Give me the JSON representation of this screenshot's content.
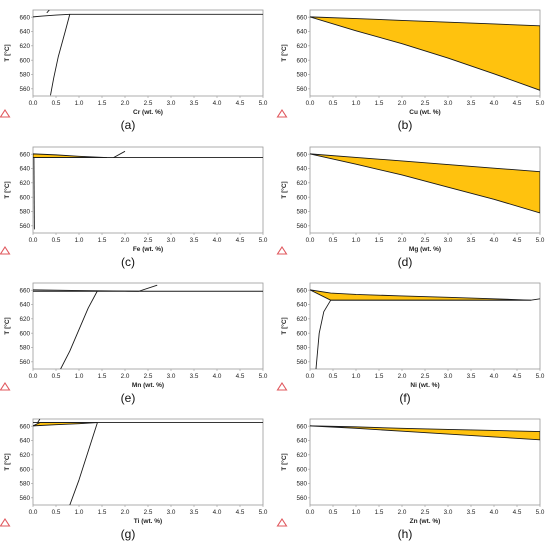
{
  "figure": {
    "panel_labels": [
      "(a)",
      "(b)",
      "(c)",
      "(d)",
      "(e)",
      "(f)",
      "(g)",
      "(h)"
    ],
    "ylabel": "T [°C]",
    "x_ticks": [
      "0.0",
      "0.5",
      "1.0",
      "1.5",
      "2.0",
      "2.5",
      "3.0",
      "3.5",
      "4.0",
      "4.5",
      "5.0"
    ],
    "y_ticks": [
      "560",
      "580",
      "600",
      "620",
      "640",
      "660"
    ],
    "colors": {
      "two_phase_fill": "#FFC20E",
      "line": "#1a1a1a",
      "axis": "#999999",
      "logo": "#e0585e"
    },
    "logo_icon": "software-logo-icon"
  },
  "chart_data": [
    {
      "type": "line",
      "panel": "(a)",
      "xlabel": "Cr (wt. %)",
      "ylabel": "T [°C]",
      "xlim": [
        0,
        5
      ],
      "ylim": [
        550,
        670
      ],
      "grid": false,
      "filled_region": null,
      "series": [
        {
          "x": [
            0,
            0.2,
            0.5,
            0.8,
            1.0,
            2.0,
            3.0,
            4.0,
            5.0
          ],
          "y": [
            660.4,
            661.5,
            663.0,
            664.0,
            664.0,
            664.0,
            664.0,
            664.0,
            664.0
          ]
        },
        {
          "x": [
            0.3,
            0.38
          ],
          "y": [
            666.0,
            672.0
          ]
        },
        {
          "x": [
            0.38,
            0.45,
            0.55,
            0.7,
            0.8
          ],
          "y": [
            551,
            575,
            605,
            640,
            664
          ]
        }
      ]
    },
    {
      "type": "area",
      "panel": "(b)",
      "xlabel": "Cu (wt. %)",
      "ylabel": "T [°C]",
      "xlim": [
        0,
        5
      ],
      "ylim": [
        550,
        670
      ],
      "grid": false,
      "filled_region": {
        "upper": {
          "x": [
            0,
            1,
            2,
            3,
            4,
            5
          ],
          "y": [
            660.4,
            658,
            655.5,
            653,
            650.5,
            648
          ]
        },
        "lower": {
          "x": [
            0,
            1,
            2,
            3,
            4,
            5
          ],
          "y": [
            660.4,
            641,
            623,
            603,
            581,
            558
          ]
        }
      },
      "series": []
    },
    {
      "type": "line",
      "panel": "(c)",
      "xlabel": "Fe (wt. %)",
      "ylabel": "T [°C]",
      "xlim": [
        0,
        5
      ],
      "ylim": [
        550,
        670
      ],
      "grid": false,
      "filled_region": {
        "upper": {
          "x": [
            0,
            0.5,
            1.0,
            1.6
          ],
          "y": [
            660.4,
            659,
            657,
            655.2
          ]
        },
        "lower": {
          "x": [
            0,
            0.5,
            1.0,
            1.6
          ],
          "y": [
            655.2,
            655.2,
            655.2,
            655.2
          ]
        }
      },
      "series": [
        {
          "x": [
            0,
            1,
            2,
            3,
            4,
            5
          ],
          "y": [
            655.2,
            655.2,
            655.2,
            655.2,
            655.2,
            655.2
          ]
        },
        {
          "x": [
            1.75,
            2.0
          ],
          "y": [
            655.2,
            664
          ]
        },
        {
          "x": [
            0.02,
            0.03
          ],
          "y": [
            655.2,
            555
          ]
        }
      ]
    },
    {
      "type": "area",
      "panel": "(d)",
      "xlabel": "Mg (wt. %)",
      "ylabel": "T [°C]",
      "xlim": [
        0,
        5
      ],
      "ylim": [
        550,
        670
      ],
      "grid": false,
      "filled_region": {
        "upper": {
          "x": [
            0,
            1,
            2,
            3,
            4,
            5
          ],
          "y": [
            660.4,
            655.5,
            650.5,
            645.5,
            640.5,
            635.5
          ]
        },
        "lower": {
          "x": [
            0,
            1,
            2,
            3,
            4,
            5
          ],
          "y": [
            660.4,
            646,
            631,
            614,
            597,
            578
          ]
        }
      },
      "series": []
    },
    {
      "type": "line",
      "panel": "(e)",
      "xlabel": "Mn (wt. %)",
      "ylabel": "T [°C]",
      "xlim": [
        0,
        5
      ],
      "ylim": [
        550,
        670
      ],
      "grid": false,
      "filled_region": null,
      "series": [
        {
          "x": [
            0,
            0.5,
            1.0,
            1.5,
            2.0,
            2.3
          ],
          "y": [
            660.4,
            660.0,
            659.5,
            659.0,
            658.7,
            658.5
          ]
        },
        {
          "x": [
            0,
            1,
            2,
            3,
            4,
            5
          ],
          "y": [
            658.5,
            658.5,
            658.5,
            658.5,
            658.5,
            658.5
          ]
        },
        {
          "x": [
            2.3,
            2.7
          ],
          "y": [
            658.5,
            667
          ]
        },
        {
          "x": [
            0.6,
            0.8,
            1.0,
            1.2,
            1.4
          ],
          "y": [
            550,
            575,
            605,
            635,
            659
          ]
        }
      ]
    },
    {
      "type": "line",
      "panel": "(f)",
      "xlabel": "Ni (wt. %)",
      "ylabel": "T [°C]",
      "xlim": [
        0,
        5
      ],
      "ylim": [
        550,
        670
      ],
      "grid": false,
      "filled_region": {
        "upper": {
          "x": [
            0,
            0.45,
            1,
            2,
            3,
            4,
            4.8
          ],
          "y": [
            660.4,
            656,
            654,
            652,
            650,
            648,
            646
          ]
        },
        "lower": {
          "x": [
            0.45,
            1,
            2,
            3,
            4,
            4.8
          ],
          "y": [
            646,
            646,
            646,
            646,
            646,
            646
          ]
        }
      },
      "series": [
        {
          "x": [
            0.45,
            1,
            2,
            3,
            4,
            4.8
          ],
          "y": [
            646,
            646,
            646,
            646,
            646,
            646
          ]
        },
        {
          "x": [
            4.8,
            5.0
          ],
          "y": [
            646,
            648
          ]
        },
        {
          "x": [
            0.13,
            0.2,
            0.3,
            0.45
          ],
          "y": [
            550,
            600,
            630,
            646
          ]
        }
      ]
    },
    {
      "type": "line",
      "panel": "(g)",
      "xlabel": "Ti (wt. %)",
      "ylabel": "T [°C]",
      "xlim": [
        0,
        5
      ],
      "ylim": [
        550,
        670
      ],
      "grid": false,
      "filled_region": {
        "upper": {
          "x": [
            0,
            0.15,
            1.4
          ],
          "y": [
            660.4,
            665,
            665
          ]
        },
        "lower": {
          "x": [
            0,
            0.5,
            1.0,
            1.4
          ],
          "y": [
            660.4,
            662,
            663.5,
            665
          ]
        }
      },
      "series": [
        {
          "x": [
            0,
            1,
            2,
            3,
            4,
            5
          ],
          "y": [
            665,
            665,
            665,
            665,
            665,
            665
          ]
        },
        {
          "x": [
            0.1,
            0.15
          ],
          "y": [
            665,
            670
          ]
        },
        {
          "x": [
            0.8,
            1.0,
            1.2,
            1.4
          ],
          "y": [
            550,
            585,
            625,
            665
          ]
        }
      ]
    },
    {
      "type": "area",
      "panel": "(h)",
      "xlabel": "Zn (wt. %)",
      "ylabel": "T [°C]",
      "xlim": [
        0,
        5
      ],
      "ylim": [
        550,
        670
      ],
      "grid": false,
      "filled_region": {
        "upper": {
          "x": [
            0,
            1,
            2,
            3,
            4,
            5
          ],
          "y": [
            660.4,
            659,
            657,
            655.5,
            654,
            652.5
          ]
        },
        "lower": {
          "x": [
            0,
            1,
            2,
            3,
            4,
            5
          ],
          "y": [
            660.4,
            657,
            653,
            649,
            645,
            641
          ]
        }
      },
      "series": []
    }
  ]
}
